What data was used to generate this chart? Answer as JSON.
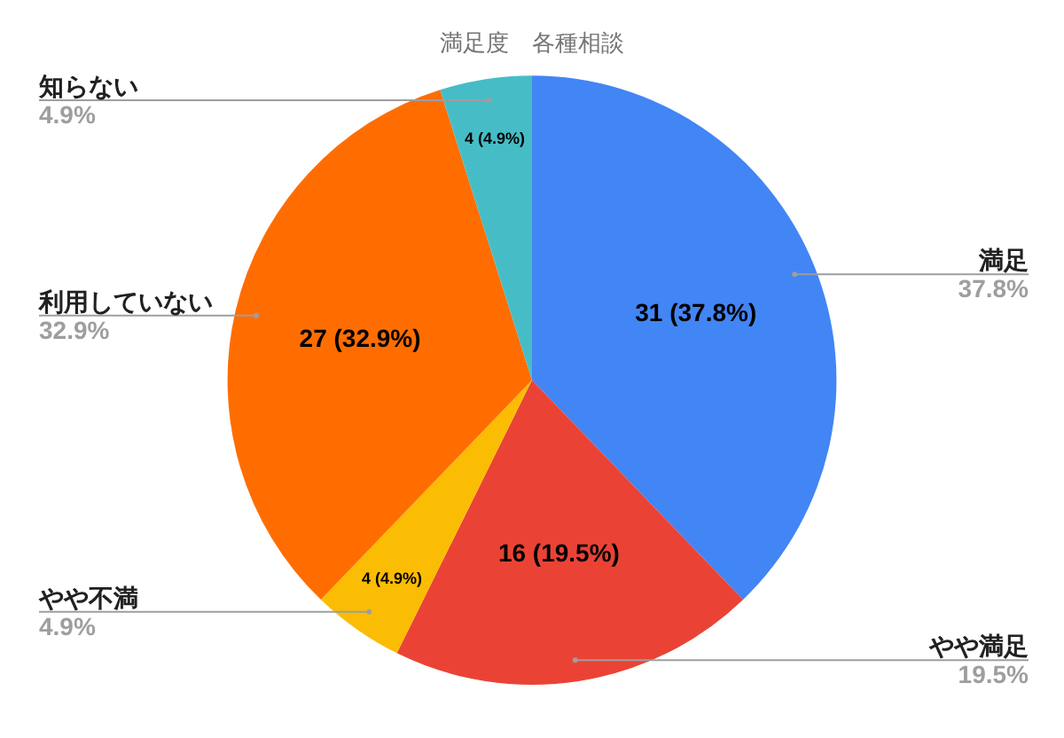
{
  "chart_data": {
    "type": "pie",
    "title": "満足度　各種相談",
    "categories": [
      "満足",
      "やや満足",
      "やや不満",
      "利用していない",
      "知らない"
    ],
    "values": [
      31,
      16,
      4,
      27,
      4
    ],
    "colors": [
      "#4285f4",
      "#ea4335",
      "#fbbc04",
      "#ff6d01",
      "#46bdc6"
    ],
    "value_labels": [
      "31 (37.8%)",
      "16 (19.5%)",
      "4 (4.9%)",
      "27 (32.9%)",
      "4 (4.9%)"
    ],
    "annotations": [
      "37.8%",
      "19.5%",
      "4.9%",
      "32.9%",
      "4.9%"
    ],
    "legend": false
  }
}
